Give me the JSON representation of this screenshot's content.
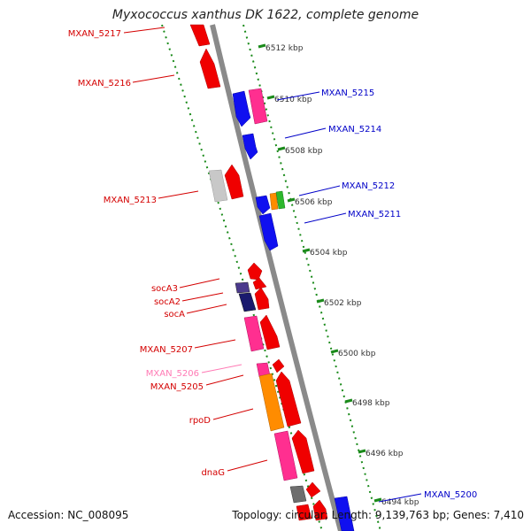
{
  "title": "Myxococcus xanthus DK 1622, complete genome",
  "footer": {
    "accession": "Accession: NC_008095",
    "topology": "Topology: circular; Length: 9,139,763 bp; Genes: 7,410"
  },
  "colors": {
    "backbone": "#8c8c8c",
    "grid_dots": "#1a8a1a",
    "label_red": "#d40000",
    "label_blue": "#0000c8",
    "label_pink": "#ff79b4"
  },
  "ticks": [
    "6512 kbp",
    "6510 kbp",
    "6508 kbp",
    "6506 kbp",
    "6504 kbp",
    "6502 kbp",
    "6500 kbp",
    "6498 kbp",
    "6496 kbp",
    "6494 kbp"
  ],
  "left_labels": [
    "MXAN_5217",
    "MXAN_5216",
    "MXAN_5213",
    "socA3",
    "socA2",
    "socA",
    "MXAN_5207",
    "MXAN_5206",
    "MXAN_5205",
    "rpoD",
    "dnaG"
  ],
  "right_labels": [
    "MXAN_5215",
    "MXAN_5214",
    "MXAN_5212",
    "MXAN_5211",
    "MXAN_5200"
  ]
}
